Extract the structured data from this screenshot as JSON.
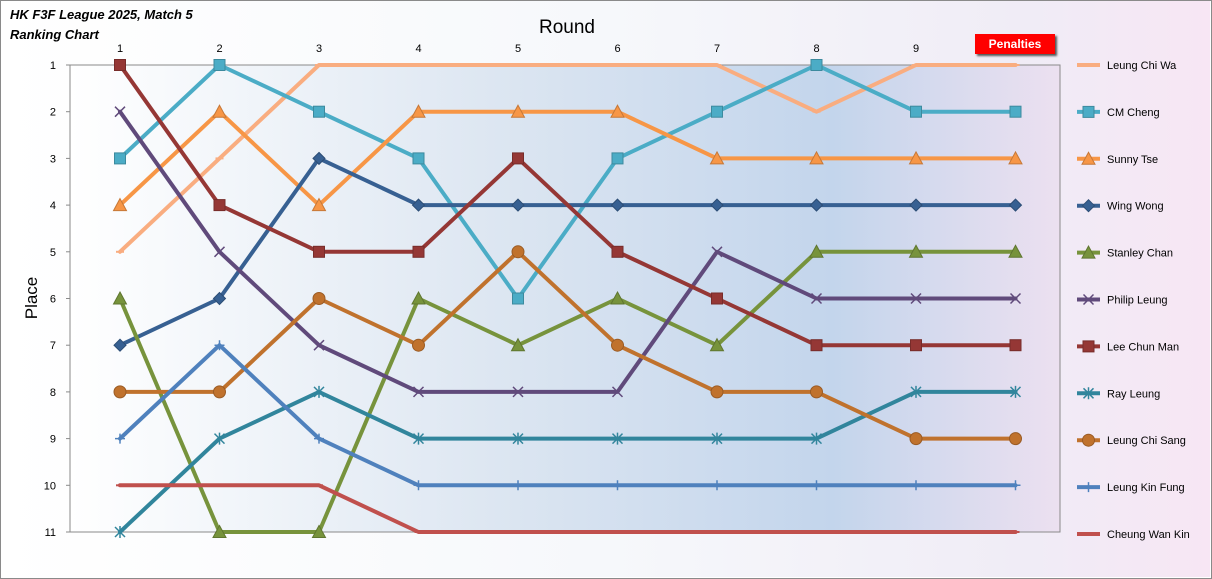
{
  "chart_data": {
    "type": "line",
    "title": "HK F3F League 2025, Match 5",
    "subtitle": "Ranking Chart",
    "xlabel": "Round",
    "ylabel": "Place",
    "button_label": "Penalties",
    "x": [
      1,
      2,
      3,
      4,
      5,
      6,
      7,
      8,
      9,
      10
    ],
    "x_tick_labels": [
      "1",
      "2",
      "3",
      "4",
      "5",
      "6",
      "7",
      "8",
      "9",
      ""
    ],
    "y_ticks": [
      1,
      2,
      3,
      4,
      5,
      6,
      7,
      8,
      9,
      10,
      11
    ],
    "ylim": [
      1,
      11
    ],
    "y_inverted": true,
    "legend_position": "right",
    "series": [
      {
        "name": "Leung Chi Wa",
        "color": "#f9ad80",
        "marker": "dash",
        "values": [
          5,
          3,
          1,
          1,
          1,
          1,
          1,
          2,
          1,
          1
        ]
      },
      {
        "name": "CM Cheng",
        "color": "#4bacc6",
        "marker": "square",
        "values": [
          3,
          1,
          2,
          3,
          6,
          3,
          2,
          1,
          2,
          2
        ]
      },
      {
        "name": "Sunny Tse",
        "color": "#f79646",
        "marker": "triangle",
        "values": [
          4,
          2,
          4,
          2,
          2,
          2,
          3,
          3,
          3,
          3
        ]
      },
      {
        "name": "Wing Wong",
        "color": "#376092",
        "marker": "diamond",
        "values": [
          7,
          6,
          3,
          4,
          4,
          4,
          4,
          4,
          4,
          4
        ]
      },
      {
        "name": "Stanley Chan",
        "color": "#77933c",
        "marker": "triangle",
        "values": [
          6,
          11,
          11,
          6,
          7,
          6,
          7,
          5,
          5,
          5
        ]
      },
      {
        "name": "Philip Leung",
        "color": "#604a7b",
        "marker": "x",
        "values": [
          2,
          5,
          7,
          8,
          8,
          8,
          5,
          6,
          6,
          6
        ]
      },
      {
        "name": "Lee Chun Man",
        "color": "#953735",
        "marker": "square",
        "values": [
          1,
          4,
          5,
          5,
          3,
          5,
          6,
          7,
          7,
          7
        ]
      },
      {
        "name": "Ray Leung",
        "color": "#31859c",
        "marker": "star",
        "values": [
          11,
          9,
          8,
          9,
          9,
          9,
          9,
          9,
          8,
          8
        ]
      },
      {
        "name": "Leung Chi Sang",
        "color": "#c0722d",
        "marker": "circle",
        "values": [
          8,
          8,
          6,
          7,
          5,
          7,
          8,
          8,
          9,
          9
        ]
      },
      {
        "name": "Leung Kin Fung",
        "color": "#4f81bd",
        "marker": "plus",
        "values": [
          9,
          7,
          9,
          10,
          10,
          10,
          10,
          10,
          10,
          10
        ]
      },
      {
        "name": "Cheung Wan Kin",
        "color": "#c0504d",
        "marker": "dash",
        "values": [
          10,
          10,
          10,
          11,
          11,
          11,
          11,
          11,
          11,
          11
        ]
      }
    ]
  }
}
